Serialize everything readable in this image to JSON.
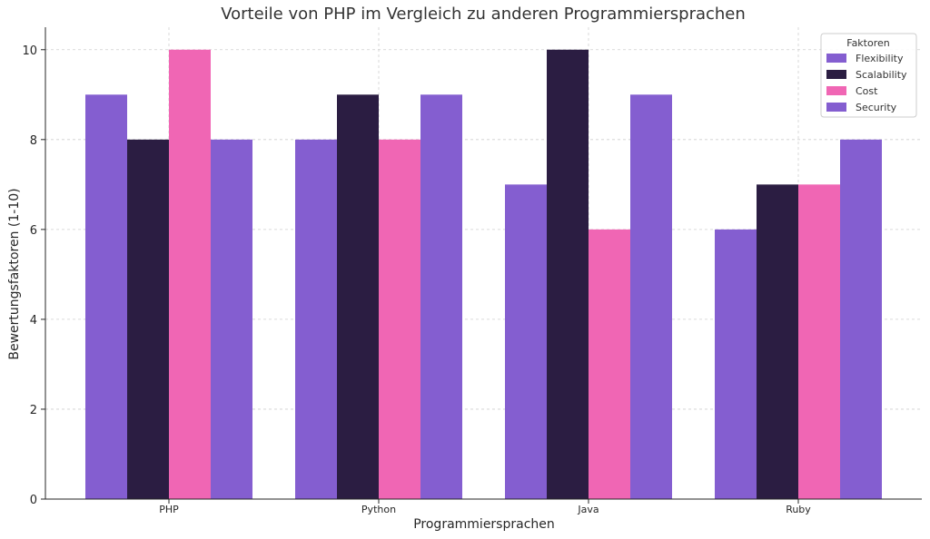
{
  "chart_data": {
    "type": "bar",
    "title": "Vorteile von PHP im Vergleich zu anderen Programmiersprachen",
    "xlabel": "Programmiersprachen",
    "ylabel": "Bewertungsfaktoren (1-10)",
    "categories": [
      "PHP",
      "Python",
      "Java",
      "Ruby"
    ],
    "series": [
      {
        "name": "Flexibility",
        "values": [
          9,
          8,
          7,
          6
        ],
        "color": "#845ed0"
      },
      {
        "name": "Scalability",
        "values": [
          8,
          9,
          10,
          7
        ],
        "color": "#2b1d42"
      },
      {
        "name": "Cost",
        "values": [
          10,
          8,
          6,
          7
        ],
        "color": "#f066b4"
      },
      {
        "name": "Security",
        "values": [
          8,
          9,
          9,
          8
        ],
        "color": "#845ed0"
      }
    ],
    "ylim": [
      0,
      10.5
    ],
    "yticks": [
      0,
      2,
      4,
      6,
      8,
      10
    ],
    "grid": true,
    "legend": {
      "title": "Faktoren",
      "placement": "top-right"
    }
  }
}
